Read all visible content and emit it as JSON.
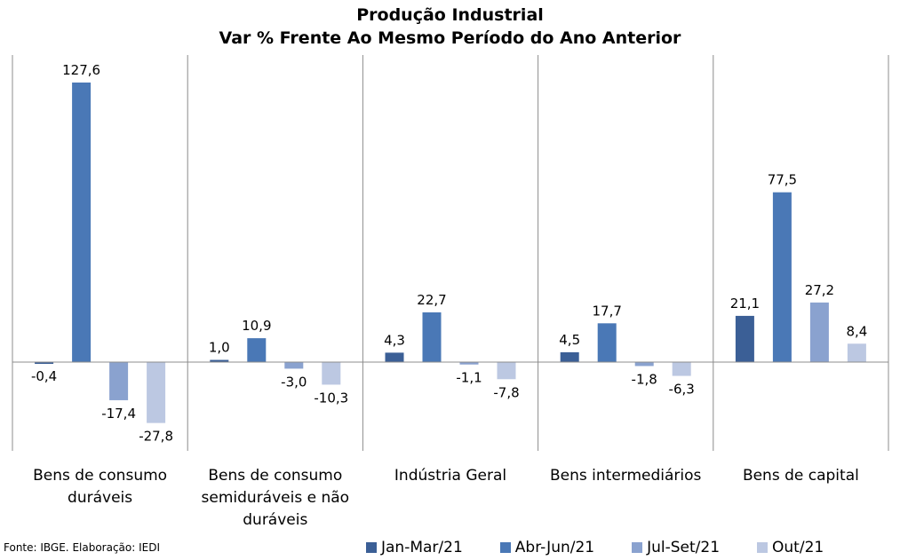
{
  "title": {
    "line1": "Produção Industrial",
    "line2": "Var % Frente Ao Mesmo Período do Ano Anterior"
  },
  "source": "Fonte: IBGE. Elaboração: IEDI",
  "chart_data": {
    "type": "bar",
    "title": "Produção Industrial / Var % Frente Ao Mesmo Período do Ano Anterior",
    "categories": [
      "Bens de consumo duráveis",
      "Bens de consumo semiduráveis e não duráveis",
      "Indústria Geral",
      "Bens intermediários",
      "Bens de capital"
    ],
    "category_lines": [
      [
        "Bens de consumo",
        "duráveis"
      ],
      [
        "Bens de consumo",
        "semiduráveis e não",
        "duráveis"
      ],
      [
        "Indústria Geral"
      ],
      [
        "Bens intermediários"
      ],
      [
        "Bens de capital"
      ]
    ],
    "series": [
      {
        "name": "Jan-Mar/21",
        "color": "#3b5f96",
        "values": [
          -0.4,
          1.0,
          4.3,
          4.5,
          21.1
        ],
        "labels": [
          "-0,4",
          "1,0",
          "4,3",
          "4,5",
          "21,1"
        ]
      },
      {
        "name": "Abr-Jun/21",
        "color": "#4a78b6",
        "values": [
          127.6,
          10.9,
          22.7,
          17.7,
          77.5
        ],
        "labels": [
          "127,6",
          "10,9",
          "22,7",
          "17,7",
          "77,5"
        ]
      },
      {
        "name": "Jul-Set/21",
        "color": "#8aa2cf",
        "values": [
          -17.4,
          -3.0,
          -1.1,
          -1.8,
          27.2
        ],
        "labels": [
          "-17,4",
          "-3,0",
          "-1,1",
          "-1,8",
          "27,2"
        ]
      },
      {
        "name": "Out/21",
        "color": "#bcc8e2",
        "values": [
          -27.8,
          -10.3,
          -7.8,
          -6.3,
          8.4
        ],
        "labels": [
          "-27,8",
          "-10,3",
          "-7,8",
          "-6,3",
          "8,4"
        ]
      }
    ],
    "ylim": [
      -40,
      140
    ],
    "grid": false,
    "legend_position": "bottom-right",
    "xlabel": "",
    "ylabel": ""
  }
}
